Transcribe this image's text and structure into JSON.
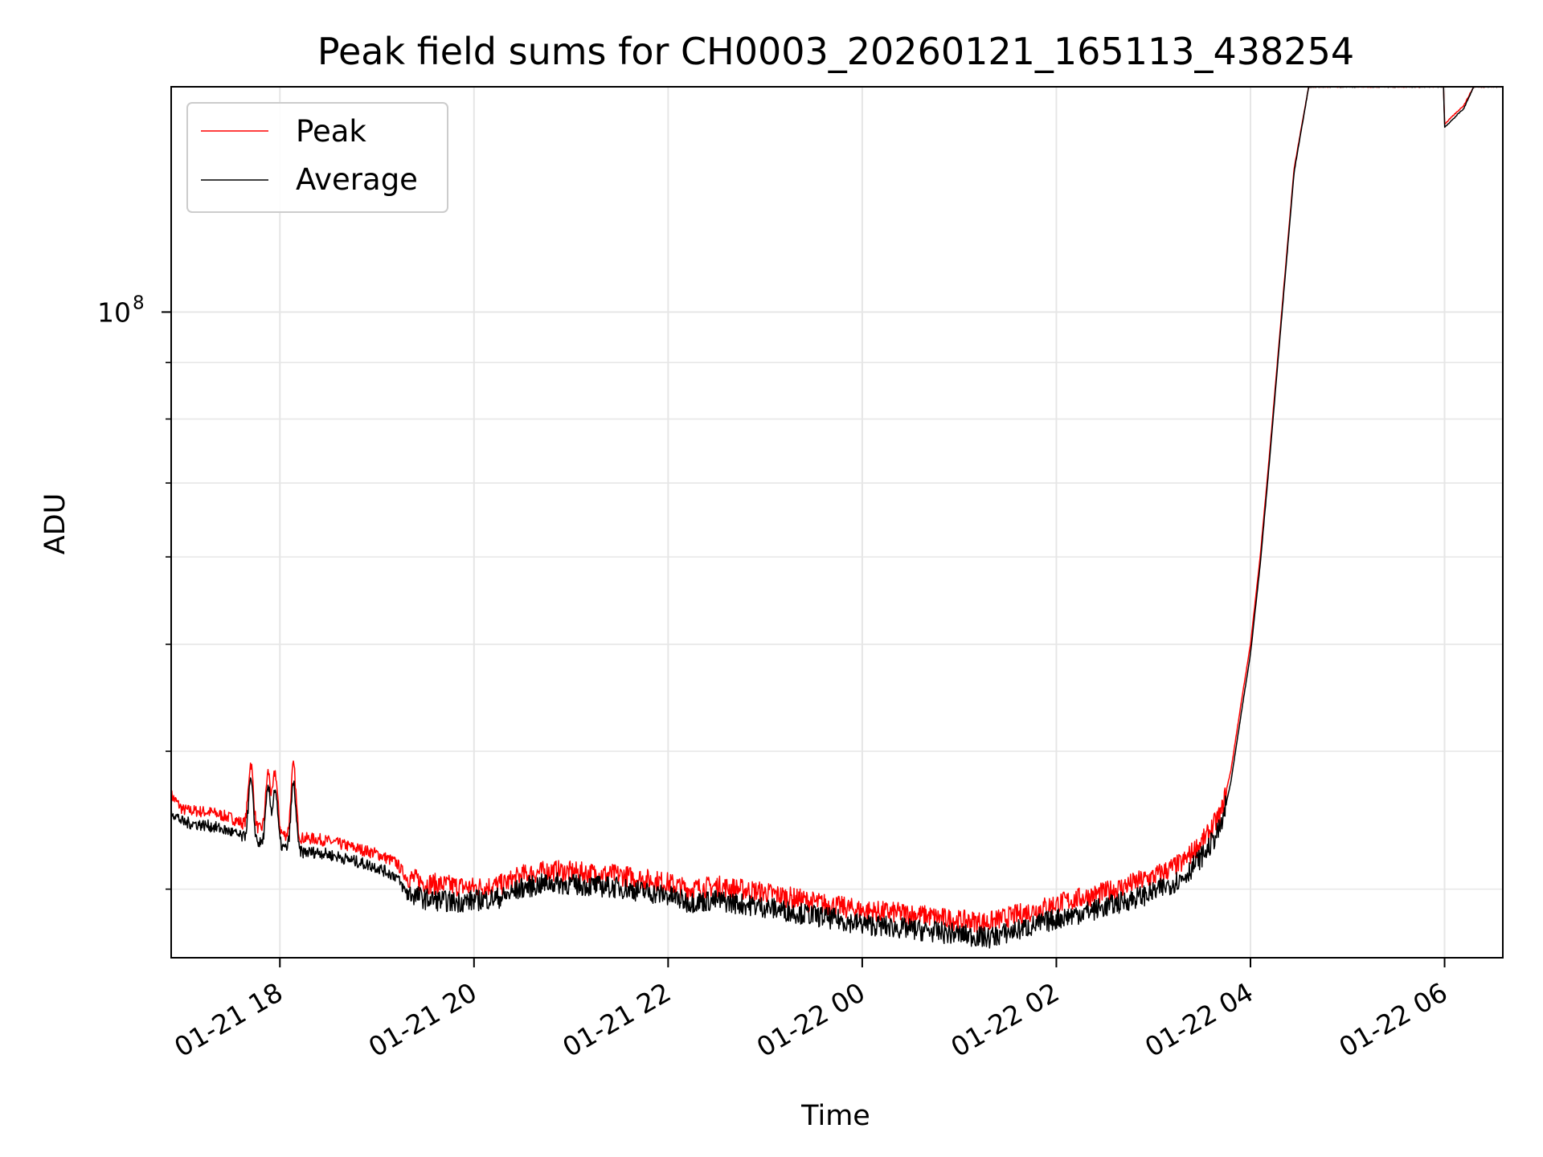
{
  "chart_data": {
    "type": "line",
    "title": "Peak field sums for CH0003_20260121_165113_438254",
    "xlabel": "Time",
    "ylabel": "ADU",
    "yscale": "log",
    "ylim": [
      26000000,
      160000000
    ],
    "xlim_hours": [
      16.88,
      30.6
    ],
    "y_tick_major": {
      "value": 100000000,
      "base": "10",
      "exponent": "8"
    },
    "y_minor_ticks": [
      30000000,
      40000000,
      50000000,
      60000000,
      70000000,
      80000000,
      90000000,
      200000000
    ],
    "x_ticks": [
      {
        "hours": 18,
        "label": "01-21 18"
      },
      {
        "hours": 20,
        "label": "01-21 20"
      },
      {
        "hours": 22,
        "label": "01-21 22"
      },
      {
        "hours": 24,
        "label": "01-22 00"
      },
      {
        "hours": 26,
        "label": "01-22 02"
      },
      {
        "hours": 28,
        "label": "01-22 04"
      },
      {
        "hours": 30,
        "label": "01-22 06"
      }
    ],
    "grid": true,
    "legend": {
      "position": "top-left",
      "entries": [
        {
          "name": "Peak",
          "color": "#ff0000"
        },
        {
          "name": "Average",
          "color": "#000000"
        }
      ]
    },
    "series": [
      {
        "name": "Peak",
        "color": "#ff0000",
        "baseline_hours": [
          16.88,
          17.0,
          17.3,
          17.5,
          17.65,
          17.8,
          18.0,
          18.15,
          18.4,
          18.6,
          19.0,
          19.2,
          19.3,
          19.5,
          19.8,
          20.0,
          20.3,
          20.5,
          20.8,
          21.0,
          21.5,
          22.0,
          22.2,
          22.5,
          23.0,
          23.5,
          24.0,
          24.5,
          25.0,
          25.3,
          25.7,
          26.0,
          26.5,
          27.0,
          27.3,
          27.55,
          27.7,
          27.8,
          27.9,
          28.0,
          28.1,
          28.2,
          28.3,
          28.45,
          28.6,
          29.0,
          29.5,
          29.99,
          30.0,
          30.2,
          30.3,
          30.6
        ],
        "baseline_values": [
          36500000,
          35400000,
          35200000,
          34800000,
          34300000,
          34000000,
          33700000,
          33400000,
          33300000,
          33000000,
          32300000,
          31700000,
          30800000,
          30400000,
          30200000,
          30100000,
          30300000,
          30900000,
          31200000,
          31100000,
          30900000,
          30400000,
          30000000,
          30200000,
          29800000,
          29200000,
          28700000,
          28500000,
          28100000,
          28000000,
          28600000,
          29100000,
          29800000,
          30800000,
          31700000,
          33500000,
          35200000,
          38500000,
          44000000,
          50000000,
          60000000,
          75000000,
          95000000,
          135000000,
          160000000,
          160000000,
          160000000,
          160000000,
          148000000,
          154000000,
          160000000,
          160000000
        ],
        "spikes": [
          {
            "hours": 17.7,
            "value": 39000000
          },
          {
            "hours": 17.88,
            "value": 38300000
          },
          {
            "hours": 17.95,
            "value": 38300000
          },
          {
            "hours": 18.14,
            "value": 38800000
          }
        ]
      },
      {
        "name": "Average",
        "color": "#000000",
        "baseline_hours": [
          16.88,
          17.0,
          17.3,
          17.5,
          17.65,
          17.8,
          18.0,
          18.15,
          18.4,
          18.6,
          19.0,
          19.2,
          19.3,
          19.5,
          19.8,
          20.0,
          20.3,
          20.5,
          20.8,
          21.0,
          21.5,
          22.0,
          22.2,
          22.5,
          23.0,
          23.5,
          24.0,
          24.5,
          25.0,
          25.3,
          25.7,
          26.0,
          26.5,
          27.0,
          27.3,
          27.55,
          27.7,
          27.8,
          27.9,
          28.0,
          28.1,
          28.2,
          28.3,
          28.45,
          28.6,
          29.0,
          29.5,
          29.99,
          30.0,
          30.2,
          30.3,
          30.6
        ],
        "baseline_values": [
          35300000,
          34500000,
          34200000,
          33800000,
          33300000,
          33000000,
          32800000,
          32400000,
          32400000,
          32100000,
          31400000,
          30800000,
          29800000,
          29400000,
          29200000,
          29300000,
          29500000,
          30100000,
          30400000,
          30300000,
          30100000,
          29600000,
          29200000,
          29300000,
          28900000,
          28400000,
          27900000,
          27600000,
          27300000,
          27100000,
          27700000,
          28200000,
          28900000,
          29800000,
          30700000,
          32500000,
          34200000,
          37600000,
          43000000,
          49000000,
          59000000,
          74000000,
          94000000,
          134000000,
          160000000,
          160000000,
          160000000,
          160000000,
          147000000,
          153000000,
          160000000,
          160000000
        ],
        "spikes": [
          {
            "hours": 17.7,
            "value": 37600000
          },
          {
            "hours": 17.88,
            "value": 37000000
          },
          {
            "hours": 17.95,
            "value": 37000000
          },
          {
            "hours": 18.14,
            "value": 37400000
          }
        ]
      }
    ]
  }
}
